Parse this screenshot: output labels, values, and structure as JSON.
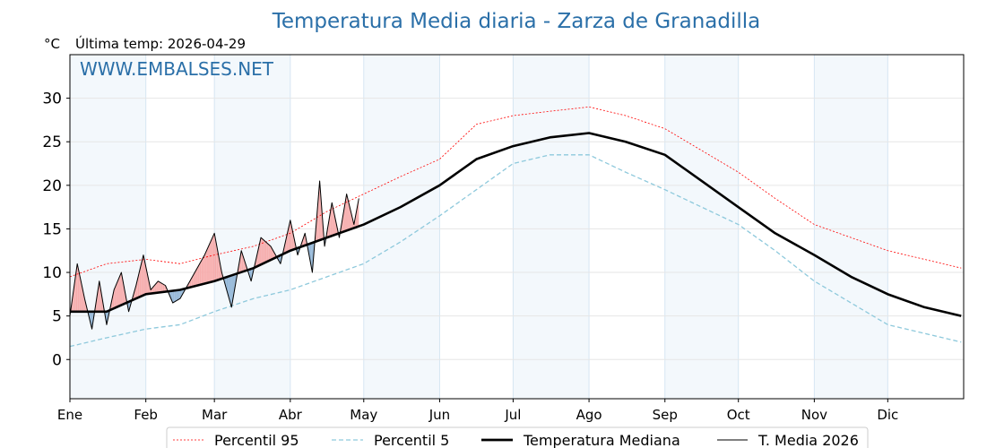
{
  "chart_data": {
    "type": "line",
    "title": "Temperatura Media diaria - Zarza de Granadilla",
    "unit_label": "°C",
    "subtitle": "Última temp: 2026-04-29",
    "watermark": "WWW.EMBALSES.NET",
    "months": [
      "Ene",
      "Feb",
      "Mar",
      "Abr",
      "May",
      "Jun",
      "Jul",
      "Ago",
      "Sep",
      "Oct",
      "Nov",
      "Dic"
    ],
    "month_start_days": [
      0,
      31,
      59,
      90,
      120,
      151,
      181,
      212,
      243,
      273,
      304,
      334
    ],
    "ylim": [
      -4.5,
      35
    ],
    "yticks": [
      0,
      5,
      10,
      15,
      20,
      25,
      30
    ],
    "grid": true,
    "legend_position": "bottom-center",
    "series": [
      {
        "key": "p95",
        "name": "Percentil 95",
        "color": "#ff0000",
        "style": "dotted",
        "days": [
          0,
          15,
          31,
          45,
          59,
          75,
          90,
          105,
          120,
          135,
          151,
          166,
          181,
          196,
          212,
          227,
          243,
          258,
          273,
          288,
          304,
          319,
          334,
          349,
          364
        ],
        "values": [
          9.5,
          11.0,
          11.5,
          11.0,
          12.0,
          13.0,
          14.5,
          17.0,
          19.0,
          21.0,
          23.0,
          27.0,
          28.0,
          28.5,
          29.0,
          28.0,
          26.5,
          24.0,
          21.5,
          18.5,
          15.5,
          14.0,
          12.5,
          11.5,
          10.5
        ]
      },
      {
        "key": "p5",
        "name": "Percentil 5",
        "color": "#8ec9dc",
        "style": "dashed",
        "days": [
          0,
          15,
          31,
          45,
          59,
          75,
          90,
          105,
          120,
          135,
          151,
          166,
          181,
          196,
          212,
          227,
          243,
          258,
          273,
          288,
          304,
          319,
          334,
          349,
          364
        ],
        "values": [
          1.5,
          2.5,
          3.5,
          4.0,
          5.5,
          7.0,
          8.0,
          9.5,
          11.0,
          13.5,
          16.5,
          19.5,
          22.5,
          23.5,
          23.5,
          21.5,
          19.5,
          17.5,
          15.5,
          12.5,
          9.0,
          6.5,
          4.0,
          3.0,
          2.0
        ]
      },
      {
        "key": "median",
        "name": "Temperatura Mediana",
        "color": "#000000",
        "style": "solid-thick",
        "days": [
          0,
          15,
          31,
          45,
          59,
          75,
          90,
          105,
          120,
          135,
          151,
          166,
          181,
          196,
          212,
          227,
          243,
          258,
          273,
          288,
          304,
          319,
          334,
          349,
          364
        ],
        "values": [
          5.5,
          5.5,
          7.5,
          8.0,
          9.0,
          10.5,
          12.5,
          14.0,
          15.5,
          17.5,
          20.0,
          23.0,
          24.5,
          25.5,
          26.0,
          25.0,
          23.5,
          20.5,
          17.5,
          14.5,
          12.0,
          9.5,
          7.5,
          6.0,
          5.0
        ]
      },
      {
        "key": "current",
        "name": "T. Media 2026",
        "color": "#000000",
        "style": "solid-thin",
        "days": [
          0,
          3,
          6,
          9,
          12,
          15,
          18,
          21,
          24,
          27,
          30,
          33,
          36,
          39,
          42,
          45,
          50,
          55,
          59,
          62,
          66,
          70,
          74,
          78,
          82,
          86,
          90,
          93,
          96,
          99,
          102,
          104,
          107,
          110,
          113,
          116,
          118
        ],
        "values": [
          5.0,
          11.0,
          7.0,
          3.5,
          9.0,
          4.0,
          8.0,
          10.0,
          5.5,
          8.5,
          12.0,
          8.0,
          9.0,
          8.5,
          6.5,
          7.0,
          9.5,
          12.0,
          14.5,
          10.0,
          6.0,
          12.5,
          9.0,
          14.0,
          13.0,
          11.0,
          16.0,
          12.0,
          14.5,
          10.0,
          20.5,
          13.0,
          18.0,
          14.0,
          19.0,
          15.5,
          18.5
        ]
      }
    ]
  }
}
